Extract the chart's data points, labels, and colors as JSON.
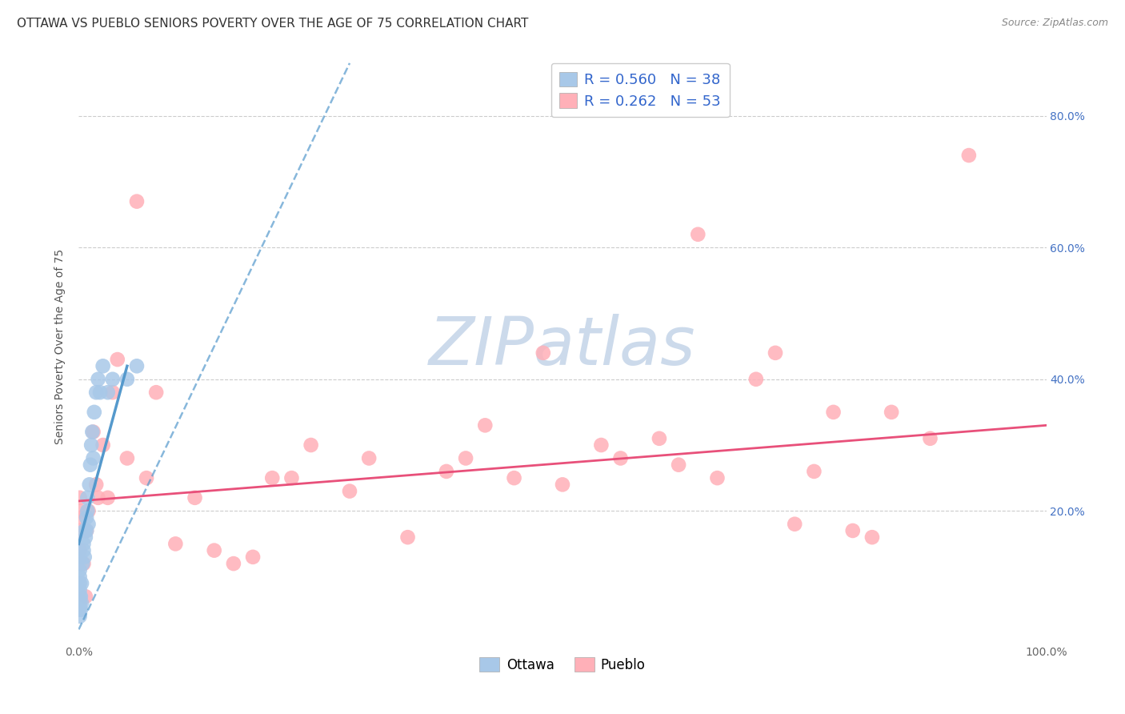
{
  "title": "OTTAWA VS PUEBLO SENIORS POVERTY OVER THE AGE OF 75 CORRELATION CHART",
  "source": "Source: ZipAtlas.com",
  "ylabel": "Seniors Poverty Over the Age of 75",
  "xlim": [
    0,
    1.0
  ],
  "ylim": [
    0,
    0.9
  ],
  "xticklabels": [
    "0.0%",
    "",
    "",
    "",
    "",
    "100.0%"
  ],
  "xtick_vals": [
    0.0,
    0.2,
    0.4,
    0.6,
    0.8,
    1.0
  ],
  "ytick_vals": [
    0.0,
    0.2,
    0.4,
    0.6,
    0.8
  ],
  "yticklabels_right": [
    "20.0%",
    "40.0%",
    "60.0%",
    "80.0%"
  ],
  "ytick_vals_right": [
    0.2,
    0.4,
    0.6,
    0.8
  ],
  "ottawa_color": "#a8c8e8",
  "pueblo_color": "#ffb0b8",
  "ottawa_R": 0.56,
  "ottawa_N": 38,
  "pueblo_R": 0.262,
  "pueblo_N": 53,
  "ottawa_points_x": [
    0.001,
    0.001,
    0.001,
    0.001,
    0.001,
    0.001,
    0.001,
    0.001,
    0.001,
    0.002,
    0.002,
    0.003,
    0.003,
    0.004,
    0.005,
    0.005,
    0.006,
    0.006,
    0.007,
    0.008,
    0.008,
    0.009,
    0.009,
    0.01,
    0.011,
    0.012,
    0.013,
    0.014,
    0.015,
    0.016,
    0.018,
    0.02,
    0.022,
    0.025,
    0.03,
    0.035,
    0.05,
    0.06
  ],
  "ottawa_points_y": [
    0.04,
    0.05,
    0.06,
    0.07,
    0.08,
    0.09,
    0.1,
    0.11,
    0.13,
    0.05,
    0.07,
    0.06,
    0.09,
    0.12,
    0.14,
    0.15,
    0.13,
    0.17,
    0.16,
    0.17,
    0.19,
    0.2,
    0.22,
    0.18,
    0.24,
    0.27,
    0.3,
    0.32,
    0.28,
    0.35,
    0.38,
    0.4,
    0.38,
    0.42,
    0.38,
    0.4,
    0.4,
    0.42
  ],
  "pueblo_points_x": [
    0.001,
    0.001,
    0.001,
    0.002,
    0.003,
    0.005,
    0.007,
    0.008,
    0.01,
    0.015,
    0.018,
    0.02,
    0.025,
    0.03,
    0.035,
    0.04,
    0.05,
    0.06,
    0.07,
    0.08,
    0.1,
    0.12,
    0.14,
    0.16,
    0.18,
    0.2,
    0.22,
    0.24,
    0.28,
    0.3,
    0.34,
    0.38,
    0.4,
    0.42,
    0.45,
    0.48,
    0.5,
    0.54,
    0.56,
    0.6,
    0.62,
    0.64,
    0.66,
    0.7,
    0.72,
    0.74,
    0.76,
    0.78,
    0.8,
    0.82,
    0.84,
    0.88,
    0.92
  ],
  "pueblo_points_y": [
    0.14,
    0.2,
    0.22,
    0.17,
    0.19,
    0.12,
    0.07,
    0.17,
    0.2,
    0.32,
    0.24,
    0.22,
    0.3,
    0.22,
    0.38,
    0.43,
    0.28,
    0.67,
    0.25,
    0.38,
    0.15,
    0.22,
    0.14,
    0.12,
    0.13,
    0.25,
    0.25,
    0.3,
    0.23,
    0.28,
    0.16,
    0.26,
    0.28,
    0.33,
    0.25,
    0.44,
    0.24,
    0.3,
    0.28,
    0.31,
    0.27,
    0.62,
    0.25,
    0.4,
    0.44,
    0.18,
    0.26,
    0.35,
    0.17,
    0.16,
    0.35,
    0.31,
    0.74
  ],
  "watermark": "ZIPatlas",
  "watermark_color": "#ccdaeb",
  "background_color": "#ffffff",
  "grid_color": "#cccccc",
  "title_fontsize": 11,
  "axis_label_fontsize": 10,
  "tick_fontsize": 10,
  "ottawa_line_color": "#5599cc",
  "pueblo_line_color": "#e8507a",
  "ottawa_trend_x0": 0.0,
  "ottawa_trend_x1": 0.28,
  "ottawa_trend_y0": 0.02,
  "ottawa_trend_y1": 0.88,
  "pueblo_trend_x0": 0.0,
  "pueblo_trend_x1": 1.0,
  "pueblo_trend_y0": 0.215,
  "pueblo_trend_y1": 0.33
}
